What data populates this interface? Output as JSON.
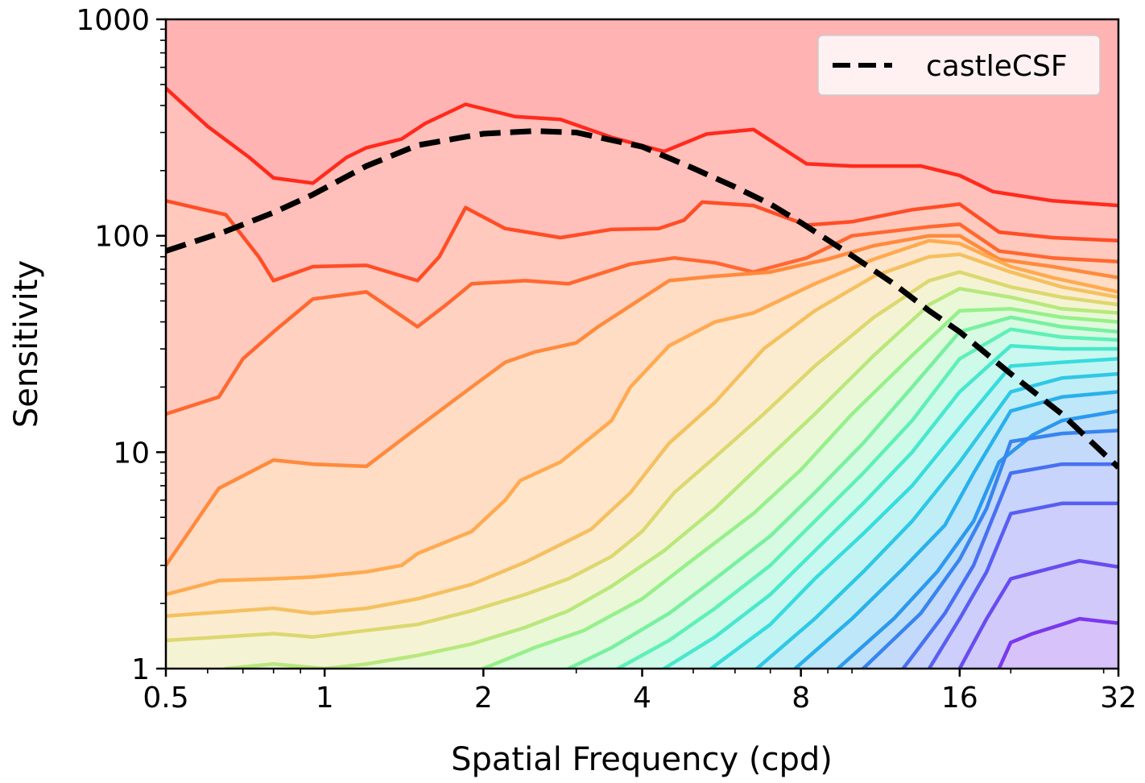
{
  "chart_data": {
    "type": "line",
    "xlabel": "Spatial Frequency (cpd)",
    "ylabel": "Sensitivity",
    "xscale": "log2",
    "yscale": "log10",
    "xlim": [
      0.5,
      32
    ],
    "ylim": [
      1,
      1000
    ],
    "x_ticks": [
      {
        "value": 0.5,
        "label": "0.5"
      },
      {
        "value": 1,
        "label": "1"
      },
      {
        "value": 2,
        "label": "2"
      },
      {
        "value": 4,
        "label": "4"
      },
      {
        "value": 8,
        "label": "8"
      },
      {
        "value": 16,
        "label": "16"
      },
      {
        "value": 32,
        "label": "32"
      }
    ],
    "y_ticks": [
      {
        "value": 1,
        "label": "1"
      },
      {
        "value": 10,
        "label": "10"
      },
      {
        "value": 100,
        "label": "100"
      },
      {
        "value": 1000,
        "label": "1000"
      }
    ],
    "grid": false,
    "legend_position": "top-right",
    "legend": [
      {
        "label": "castleCSF",
        "style": "dashed",
        "color": "#000000"
      }
    ],
    "contour_colormap": "rainbow (violet at high-frequency/low-sensitivity corner to red at top)",
    "top_fill_color": "#ffb3b3",
    "series": [
      {
        "name": "castleCSF",
        "style": "dashed",
        "color": "#000000",
        "x": [
          0.5,
          0.65,
          0.8,
          0.95,
          1.2,
          1.5,
          2,
          2.5,
          3,
          4,
          5,
          6,
          7,
          8,
          10,
          12,
          14,
          16,
          20,
          25,
          32
        ],
        "y": [
          85,
          105,
          128,
          155,
          210,
          262,
          296,
          305,
          300,
          258,
          205,
          168,
          140,
          115,
          81,
          60,
          45,
          36,
          23,
          15,
          8.5
        ]
      },
      {
        "color": "#ff2a1c",
        "x": [
          0.5,
          0.6,
          0.72,
          0.8,
          0.95,
          1.1,
          1.2,
          1.4,
          1.55,
          1.85,
          2.3,
          2.8,
          3.5,
          4.4,
          5.3,
          6.5,
          8.2,
          10,
          12,
          13.5,
          16,
          18.5,
          24,
          32
        ],
        "y": [
          480,
          320,
          230,
          185,
          175,
          230,
          255,
          280,
          330,
          405,
          355,
          345,
          285,
          245,
          295,
          310,
          215,
          210,
          210,
          210,
          190,
          160,
          145,
          138
        ]
      },
      {
        "color": "#ff4d26",
        "x": [
          0.5,
          0.65,
          0.75,
          0.8,
          0.95,
          1.2,
          1.5,
          1.65,
          1.85,
          2.2,
          2.8,
          3.5,
          4.3,
          4.8,
          5.2,
          6.5,
          8.2,
          10,
          13,
          16,
          19,
          24,
          32
        ],
        "y": [
          145,
          125,
          80,
          62,
          72,
          73,
          62,
          80,
          135,
          108,
          98,
          107,
          108,
          118,
          143,
          138,
          112,
          116,
          132,
          140,
          104,
          98,
          95
        ]
      },
      {
        "color": "#ff6830",
        "x": [
          0.5,
          0.63,
          0.7,
          0.8,
          0.95,
          1.2,
          1.5,
          1.7,
          1.9,
          2.4,
          2.9,
          3.8,
          4.6,
          5.5,
          6.5,
          8.2,
          10,
          14,
          16,
          19,
          24,
          32
        ],
        "y": [
          15,
          18,
          27,
          36,
          51,
          55,
          38,
          48,
          60,
          62,
          60,
          74,
          79,
          75,
          68,
          79,
          100,
          110,
          113,
          85,
          79,
          76
        ]
      },
      {
        "color": "#ff8a3c",
        "x": [
          0.5,
          0.55,
          0.63,
          0.8,
          0.95,
          1.2,
          1.5,
          1.9,
          2.2,
          2.5,
          3,
          3.3,
          4.5,
          5.5,
          7,
          9,
          11,
          14,
          16,
          19,
          24,
          32
        ],
        "y": [
          3,
          4.2,
          6.8,
          9.2,
          8.8,
          8.6,
          13,
          20,
          26,
          29,
          32,
          38,
          62,
          65,
          68,
          78,
          90,
          100,
          100,
          78,
          72,
          64
        ]
      },
      {
        "color": "#ffaa50",
        "x": [
          0.5,
          0.63,
          0.8,
          0.95,
          1.2,
          1.4,
          1.5,
          1.9,
          2.2,
          2.35,
          2.8,
          3.5,
          3.8,
          4.5,
          5.5,
          6.5,
          8.5,
          11,
          14,
          16,
          20,
          24,
          32
        ],
        "y": [
          2.2,
          2.55,
          2.6,
          2.65,
          2.8,
          3,
          3.4,
          4.3,
          6,
          7.4,
          9,
          14,
          20,
          31,
          40,
          44,
          60,
          78,
          95,
          92,
          72,
          64,
          55
        ]
      },
      {
        "color": "#f5c060",
        "x": [
          0.5,
          0.8,
          0.95,
          1.2,
          1.5,
          1.9,
          2.4,
          2.9,
          3.2,
          3.8,
          4.5,
          5.5,
          6.8,
          8.5,
          11,
          14,
          16,
          20,
          25,
          32
        ],
        "y": [
          1.75,
          1.9,
          1.8,
          1.9,
          2.1,
          2.45,
          3.1,
          3.9,
          4.4,
          6.5,
          11,
          17,
          30,
          45,
          65,
          80,
          82,
          68,
          58,
          52
        ]
      },
      {
        "color": "#dcd870",
        "x": [
          0.5,
          0.8,
          0.95,
          1.2,
          1.5,
          1.9,
          2.4,
          2.9,
          3.5,
          4,
          4.6,
          5.5,
          6.8,
          8.5,
          11,
          14,
          16,
          20,
          25,
          32
        ],
        "y": [
          1.35,
          1.45,
          1.4,
          1.5,
          1.6,
          1.85,
          2.2,
          2.6,
          3.3,
          4.3,
          6.5,
          9.5,
          15,
          25,
          42,
          62,
          68,
          58,
          52,
          48
        ]
      },
      {
        "color": "#b8e87c",
        "x": [
          0.65,
          0.8,
          1,
          1.2,
          1.5,
          1.9,
          2.4,
          2.9,
          3.5,
          4.4,
          5.5,
          6.8,
          8.5,
          11,
          14,
          16,
          20,
          25,
          32
        ],
        "y": [
          1.0,
          1.05,
          1.0,
          1.05,
          1.15,
          1.3,
          1.55,
          1.85,
          2.4,
          3.5,
          5.5,
          9,
          15,
          28,
          48,
          57,
          52,
          46,
          44
        ]
      },
      {
        "color": "#96f08a",
        "x": [
          2.0,
          2.5,
          3.1,
          4,
          5,
          6.5,
          8,
          10,
          13,
          16,
          20,
          25,
          32
        ],
        "y": [
          1,
          1.25,
          1.5,
          2.1,
          3.2,
          5.2,
          8.3,
          15,
          28,
          45,
          46,
          42,
          40
        ]
      },
      {
        "color": "#78f0a0",
        "x": [
          2.9,
          3.5,
          4.5,
          5.5,
          7,
          8.5,
          10.5,
          13,
          16,
          20,
          25,
          32
        ],
        "y": [
          1,
          1.25,
          1.8,
          2.6,
          4.1,
          6.5,
          11,
          20,
          36,
          42,
          38,
          36
        ]
      },
      {
        "color": "#5ef0b8",
        "x": [
          3.6,
          4.5,
          5.5,
          7,
          8.5,
          10.5,
          13,
          16,
          20,
          25,
          32
        ],
        "y": [
          1,
          1.35,
          1.9,
          3,
          4.8,
          8,
          14,
          27,
          37,
          34,
          33
        ]
      },
      {
        "color": "#48e8cc",
        "x": [
          4.4,
          5.5,
          7,
          8.5,
          10.5,
          13,
          16,
          20,
          25,
          32
        ],
        "y": [
          1,
          1.4,
          2.2,
          3.5,
          5.8,
          10,
          19,
          31,
          30,
          30
        ]
      },
      {
        "color": "#38dcdc",
        "x": [
          5.4,
          7,
          8.5,
          10.5,
          13,
          16,
          20,
          25,
          32
        ],
        "y": [
          1,
          1.6,
          2.6,
          4.2,
          7,
          13,
          25,
          26,
          27
        ]
      },
      {
        "color": "#2ec8e6",
        "x": [
          6.6,
          8.5,
          10.5,
          13,
          16,
          20,
          25,
          32
        ],
        "y": [
          1,
          1.7,
          2.8,
          4.8,
          9,
          19,
          22,
          23
        ]
      },
      {
        "color": "#28b0ec",
        "x": [
          7.8,
          10,
          12.5,
          15,
          17,
          20,
          25,
          32
        ],
        "y": [
          1,
          1.7,
          2.9,
          4.6,
          8,
          15.5,
          18,
          19
        ]
      },
      {
        "color": "#2c98ee",
        "x": [
          9.4,
          12,
          14.5,
          17,
          19,
          22,
          25,
          32
        ],
        "y": [
          1,
          1.7,
          2.8,
          4.8,
          9,
          12,
          14,
          15.5
        ]
      },
      {
        "color": "#3884f0",
        "x": [
          10.5,
          13.5,
          16,
          18,
          20,
          25,
          32
        ],
        "y": [
          1,
          1.8,
          3.2,
          5.5,
          11.2,
          12.2,
          12.6
        ]
      },
      {
        "color": "#4870f2",
        "x": [
          12.5,
          15,
          17,
          20,
          25,
          32
        ],
        "y": [
          1,
          1.8,
          3,
          8,
          8.8,
          8.8
        ]
      },
      {
        "color": "#585ef2",
        "x": [
          14,
          16,
          18,
          20,
          25,
          32
        ],
        "y": [
          1,
          1.7,
          2.8,
          5.2,
          5.8,
          5.8
        ]
      },
      {
        "color": "#684cf0",
        "x": [
          16,
          18,
          20,
          25,
          27,
          32
        ],
        "y": [
          1,
          1.7,
          2.6,
          3.0,
          3.15,
          2.95
        ]
      },
      {
        "color": "#7a38ee",
        "x": [
          19,
          20,
          22,
          25,
          27,
          32
        ],
        "y": [
          1,
          1.32,
          1.45,
          1.6,
          1.7,
          1.62
        ]
      }
    ]
  }
}
